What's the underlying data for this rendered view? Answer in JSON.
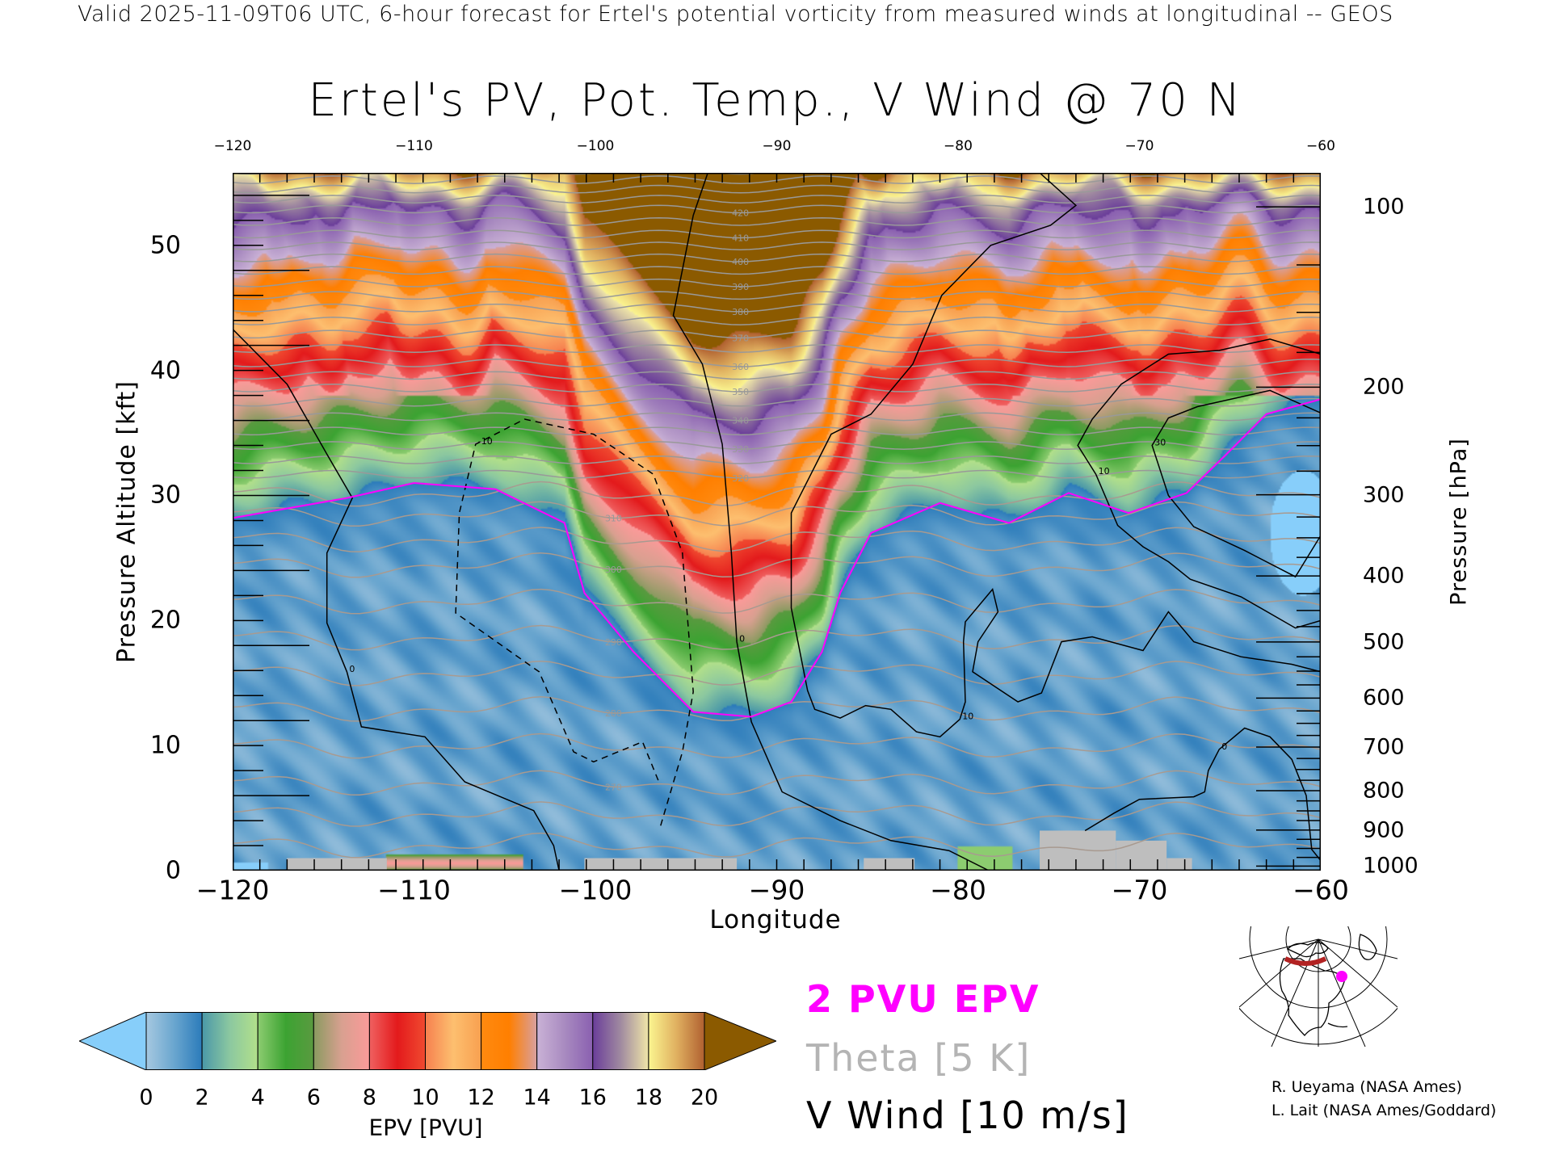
{
  "header": {
    "top_line": "Valid 2025-11-09T06 UTC, 6-hour forecast for Ertel's potential vorticity from measured winds at longitudinal -- GEOS",
    "title": "Ertel's PV, Pot. Temp., V Wind @ 70 N"
  },
  "chart_data": {
    "type": "heatmap",
    "title": "Ertel's PV, Pot. Temp., V Wind @ 70 N",
    "xlabel": "Longitude",
    "ylabel": "Pressure Altitude [kft]",
    "ylabel_right": "Pressure [hPa]",
    "xlim": [
      -120,
      -60
    ],
    "ylim": [
      0,
      55.8
    ],
    "x_ticks": [
      -120,
      -110,
      -100,
      -90,
      -80,
      -70,
      -60
    ],
    "x_tick_labels": [
      "−120",
      "−110",
      "−100",
      "−90",
      "−80",
      "−70",
      "−60"
    ],
    "top_tick_labels": [
      "−120",
      "−110",
      "−100",
      "−90",
      "−80",
      "−70",
      "−60"
    ],
    "y_ticks": [
      0,
      10,
      20,
      30,
      40,
      50
    ],
    "y_tick_labels": [
      "0",
      "10",
      "20",
      "30",
      "40",
      "50"
    ],
    "pressure_ticks": [
      100,
      200,
      300,
      400,
      500,
      600,
      700,
      800,
      900,
      1000
    ],
    "pressure_tick_labels": [
      "100",
      "200",
      "300",
      "400",
      "500",
      "600",
      "700",
      "800",
      "900",
      "1000"
    ],
    "pv_2pvu_contour": [
      [
        -120,
        28.2
      ],
      [
        -113.7,
        29.8
      ],
      [
        -110,
        31
      ],
      [
        -105.5,
        30.5
      ],
      [
        -101.7,
        27.8
      ],
      [
        -100.6,
        22.2
      ],
      [
        -97.9,
        17.5
      ],
      [
        -94.6,
        12.7
      ],
      [
        -91.4,
        12.3
      ],
      [
        -89.2,
        13.5
      ],
      [
        -87.5,
        17.5
      ],
      [
        -86.5,
        22.2
      ],
      [
        -84.8,
        27
      ],
      [
        -81,
        29.4
      ],
      [
        -77.2,
        27.8
      ],
      [
        -73.9,
        30.2
      ],
      [
        -70.6,
        28.6
      ],
      [
        -67.4,
        30.2
      ],
      [
        -65.2,
        33.3
      ],
      [
        -63,
        36.5
      ],
      [
        -60,
        37.7
      ]
    ],
    "theta_levels_K": [
      260,
      270,
      280,
      290,
      300,
      310,
      320,
      330,
      340,
      350,
      360,
      370,
      380,
      390,
      400,
      410,
      420,
      430,
      440
    ],
    "theta_level_altitude_kft": [
      2,
      7,
      12.9,
      18.6,
      24.4,
      28.5,
      31.7,
      34,
      36.3,
      38.6,
      40.6,
      42.9,
      45,
      47,
      49,
      50.9,
      52.9,
      54.5,
      56
    ],
    "theta_labels": [
      "270",
      "280",
      "290",
      "300",
      "310",
      "320",
      "330",
      "340",
      "350",
      "360",
      "370",
      "380",
      "390",
      "400",
      "410",
      "420"
    ],
    "v_wind_contours": [
      {
        "label": "0",
        "value": 0,
        "points": [
          [
            -120,
            43.3
          ],
          [
            -117,
            38.9
          ],
          [
            -114.8,
            33.3
          ],
          [
            -113.4,
            29.8
          ],
          [
            -114.8,
            25.4
          ],
          [
            -114.8,
            19.8
          ],
          [
            -113.7,
            15.9
          ],
          [
            -112.9,
            11.5
          ],
          [
            -109.4,
            10.7
          ],
          [
            -107.2,
            7.1
          ],
          [
            -103.4,
            4.8
          ],
          [
            -102.3,
            2.0
          ],
          [
            -102,
            0
          ]
        ]
      },
      {
        "label": "0",
        "value": 0,
        "points": [
          [
            -93.8,
            55.8
          ],
          [
            -94.6,
            52.4
          ],
          [
            -95.7,
            44.4
          ],
          [
            -94.1,
            40.5
          ],
          [
            -93,
            34.1
          ],
          [
            -92.5,
            25.4
          ],
          [
            -92.2,
            18.3
          ],
          [
            -91.4,
            11.9
          ],
          [
            -89.7,
            6.3
          ],
          [
            -86.5,
            4
          ],
          [
            -83.7,
            2.4
          ],
          [
            -80.5,
            1.6
          ],
          [
            -78.3,
            0
          ]
        ]
      },
      {
        "label": "10",
        "value": 10,
        "points": [
          [
            -75.5,
            55.8
          ],
          [
            -73.5,
            53.2
          ],
          [
            -74.9,
            51.6
          ],
          [
            -78.2,
            50
          ],
          [
            -80.9,
            46
          ],
          [
            -82.5,
            40.5
          ],
          [
            -84.8,
            36.5
          ],
          [
            -87,
            34.9
          ],
          [
            -89.2,
            28.6
          ],
          [
            -89.2,
            21
          ],
          [
            -88.3,
            14.4
          ],
          [
            -87.9,
            12.9
          ],
          [
            -86.5,
            12.2
          ],
          [
            -85.1,
            13.2
          ],
          [
            -83.7,
            12.9
          ],
          [
            -82.3,
            11.1
          ],
          [
            -81.0,
            10.7
          ],
          [
            -79.9,
            12.1
          ],
          [
            -79.6,
            13.5
          ],
          [
            -79.7,
            18.3
          ],
          [
            -79.6,
            19.9
          ],
          [
            -78.1,
            22.5
          ],
          [
            -77.8,
            20.7
          ],
          [
            -78.9,
            18.3
          ],
          [
            -79.2,
            15.9
          ],
          [
            -76.7,
            13.5
          ],
          [
            -75.4,
            14.2
          ],
          [
            -74.3,
            18.3
          ],
          [
            -72.6,
            18.7
          ],
          [
            -69.8,
            17.6
          ],
          [
            -68.4,
            20.7
          ],
          [
            -67.0,
            18.3
          ],
          [
            -64.4,
            17.1
          ],
          [
            -61.6,
            16.5
          ],
          [
            -60,
            15.9
          ]
        ]
      },
      {
        "label": "10",
        "value": 10,
        "points": [
          [
            -60,
            20.0
          ],
          [
            -61.4,
            19.4
          ],
          [
            -64.4,
            21.9
          ],
          [
            -67.2,
            23.3
          ],
          [
            -68.4,
            24.7
          ],
          [
            -69.8,
            25.9
          ],
          [
            -71.2,
            27.6
          ],
          [
            -72.4,
            31.7
          ],
          [
            -73.4,
            34.0
          ],
          [
            -72.6,
            36.1
          ],
          [
            -71,
            38.9
          ],
          [
            -68.4,
            41.3
          ],
          [
            -65.6,
            41.6
          ],
          [
            -62.8,
            42.5
          ],
          [
            -60,
            41.3
          ]
        ]
      },
      {
        "label": "30",
        "value": 30,
        "points": [
          [
            -60,
            26.8
          ],
          [
            -61.4,
            23.5
          ],
          [
            -64.2,
            25.6
          ],
          [
            -67,
            27.5
          ],
          [
            -68.4,
            30
          ],
          [
            -69.3,
            34
          ],
          [
            -68.4,
            36.2
          ],
          [
            -66.8,
            37.1
          ],
          [
            -62.8,
            38.4
          ],
          [
            -60,
            36.6
          ]
        ]
      },
      {
        "label": "0",
        "value": 0,
        "points": [
          [
            -73,
            3.2
          ],
          [
            -71.4,
            4.6
          ],
          [
            -70,
            5.7
          ],
          [
            -67,
            5.9
          ],
          [
            -66.4,
            6.3
          ],
          [
            -66.2,
            8.0
          ],
          [
            -65.6,
            9.7
          ],
          [
            -64.2,
            11.4
          ],
          [
            -62.8,
            10.7
          ],
          [
            -61.6,
            8.9
          ],
          [
            -60.8,
            6.0
          ],
          [
            -60.5,
            1.7
          ],
          [
            -60,
            0.8
          ]
        ]
      },
      {
        "label": "-10",
        "value": -10,
        "points": [
          [
            -96.4,
            3.6
          ],
          [
            -95.2,
            9.5
          ],
          [
            -94.6,
            14.3
          ],
          [
            -95.2,
            25.4
          ],
          [
            -96.8,
            31.7
          ],
          [
            -100.1,
            34.9
          ],
          [
            -103.9,
            36.1
          ],
          [
            -106.6,
            34.1
          ],
          [
            -107.5,
            28.6
          ],
          [
            -107.7,
            20.6
          ],
          [
            -103.1,
            15.9
          ],
          [
            -101.2,
            9.5
          ],
          [
            -100.1,
            8.7
          ],
          [
            -97.4,
            10.3
          ],
          [
            -96.5,
            7.1
          ]
        ]
      }
    ],
    "terrain": [
      [
        -117,
        -111.5,
        1.0
      ],
      [
        -100.6,
        -92.2,
        1.0
      ],
      [
        -85.2,
        -82.4,
        1.0
      ],
      [
        -75.5,
        -71.3,
        3.2
      ],
      [
        -71.3,
        -68.5,
        2.4
      ],
      [
        -68.5,
        -67.1,
        1.0
      ]
    ],
    "colorbar": {
      "title": "EPV [PVU]",
      "ticks": [
        "0",
        "2",
        "4",
        "6",
        "8",
        "10",
        "12",
        "14",
        "16",
        "18",
        "20"
      ],
      "under_color": "#87cefa",
      "over_color": "#8b5a00",
      "segments": [
        [
          "#a6c8e0",
          "#6aa6cf",
          "#2b7bba"
        ],
        [
          "#4a98a8",
          "#8cc8a0",
          "#b2e08a"
        ],
        [
          "#8ccc70",
          "#3ca332",
          "#5a9a40"
        ],
        [
          "#8a9a60",
          "#d8a090",
          "#fb9a99"
        ],
        [
          "#f06060",
          "#e31a1c",
          "#f04a30"
        ],
        [
          "#f6804f",
          "#fdbf6f",
          "#f8a050"
        ],
        [
          "#ff8a10",
          "#ff7f00",
          "#d8a0a0"
        ],
        [
          "#cab2d6",
          "#a88ac0",
          "#8a60b0"
        ],
        [
          "#6a3d9a",
          "#a08aa0",
          "#f0e6a8"
        ],
        [
          "#fbf590",
          "#e0b060",
          "#b06030"
        ]
      ]
    }
  },
  "legend": {
    "epv": "2 PVU EPV",
    "theta": "Theta [5 K]",
    "wind": "V Wind [10 m/s]",
    "epv_color": "#ff00ff",
    "theta_color": "#b4b4b4"
  },
  "credits": {
    "line1": "R. Ueyama (NASA Ames)",
    "line2": "L. Lait (NASA Ames/Goddard)"
  }
}
